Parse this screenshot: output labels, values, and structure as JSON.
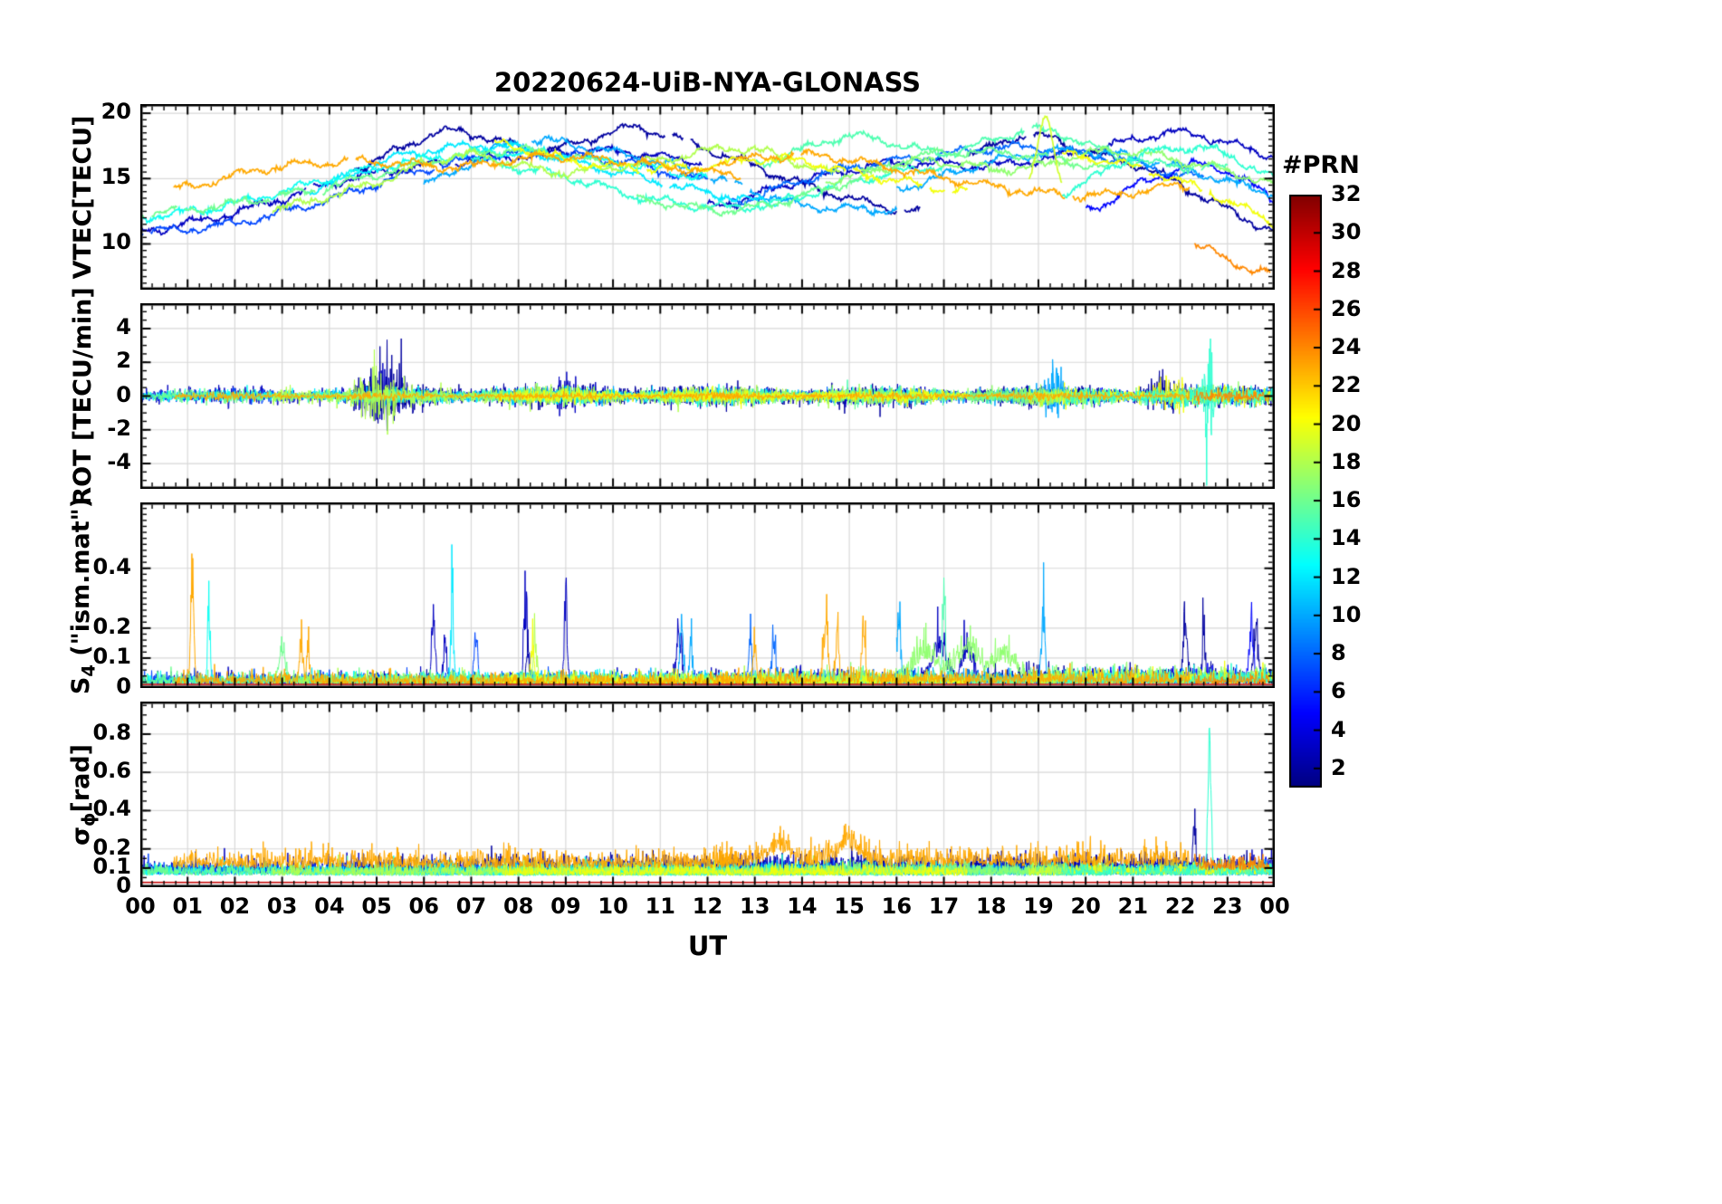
{
  "chart_data": {
    "type": "line",
    "title": "20220624-UiB-NYA-GLONASS",
    "xlabel": "UT",
    "x_range": [
      0,
      24
    ],
    "x_ticks": [
      "00",
      "01",
      "02",
      "03",
      "04",
      "05",
      "06",
      "07",
      "08",
      "09",
      "10",
      "11",
      "12",
      "13",
      "14",
      "15",
      "16",
      "17",
      "18",
      "19",
      "20",
      "21",
      "22",
      "23",
      "00"
    ],
    "grid": true,
    "colorbar": {
      "label": "#PRN",
      "colormap": "jet",
      "range": [
        1,
        32
      ],
      "ticks": [
        2,
        4,
        6,
        8,
        10,
        12,
        14,
        16,
        18,
        20,
        22,
        24,
        26,
        28,
        30,
        32
      ]
    },
    "panels": [
      {
        "id": "vtec",
        "ylabel": [
          {
            "t": "VTEC[TECU]"
          }
        ],
        "ylim": [
          6.5,
          20.7
        ],
        "yticks": [
          10,
          15,
          20
        ],
        "minor": 0.5
      },
      {
        "id": "rot",
        "ylabel": [
          {
            "t": "ROT [TECU/min]"
          }
        ],
        "ylim": [
          -5.5,
          5.5
        ],
        "yticks": [
          -4,
          -2,
          0,
          2,
          4
        ],
        "minor": 0.5
      },
      {
        "id": "s4",
        "ylabel": [
          {
            "t": "S"
          },
          {
            "sub": "4"
          },
          {
            "t": " (\"ism.mat\")"
          }
        ],
        "ylim": [
          0,
          0.62
        ],
        "yticks": [
          0,
          0.1,
          0.2,
          0.4
        ],
        "minor": 0.02
      },
      {
        "id": "sigma_phi",
        "ylabel": [
          {
            "t": "σ"
          },
          {
            "sub": "ϕ"
          },
          {
            "t": "[rad]"
          }
        ],
        "ylim": [
          0,
          0.97
        ],
        "yticks": [
          0,
          0.1,
          0.2,
          0.4,
          0.6,
          0.8
        ],
        "minor": 0.05
      }
    ],
    "seed": 20220624,
    "series": [
      {
        "prn": 3,
        "t0": 0,
        "dt": 2,
        "v": [
          11.0,
          12.4,
          14.6,
          16.0,
          16.7,
          17.1,
          16.2
        ],
        "rot": {
          "amp": 0.45,
          "bursts": [
            [
              5.1,
              0.4,
              1.4
            ],
            [
              9.0,
              0.25,
              0.9
            ]
          ]
        },
        "s4": {
          "base": 0.03,
          "spikes": [
            [
              6.2,
              0.2,
              0.05
            ],
            [
              6.45,
              0.16,
              0.04
            ],
            [
              8.15,
              0.22,
              0.05
            ],
            [
              9.0,
              0.27,
              0.04
            ],
            [
              11.4,
              0.15,
              0.07
            ]
          ]
        },
        "sig": {
          "floor": 0.07,
          "amp": 0.035
        }
      },
      {
        "prn": 2,
        "t0": 4.5,
        "dt": 2,
        "v": [
          15.8,
          18.6,
          17.2,
          18.8,
          16.6,
          14.0,
          12.4
        ],
        "rot": {
          "amp": 0.55,
          "bursts": [
            [
              5.3,
              0.5,
              1.5
            ]
          ]
        },
        "s4": {
          "base": 0.028,
          "spikes": [
            [
              8.2,
              0.1,
              0.05
            ]
          ]
        },
        "sig": {
          "floor": 0.075,
          "amp": 0.04
        }
      },
      {
        "prn": 3,
        "t0": 12,
        "dt": 2,
        "v": [
          12.8,
          14.8,
          16.2,
          16.0,
          17.1,
          18.5,
          16.8
        ],
        "rot": {
          "amp": 0.45
        },
        "s4": {
          "base": 0.035,
          "spikes": [
            [
              16.9,
              0.12,
              0.2
            ],
            [
              17.5,
              0.11,
              0.15
            ]
          ]
        },
        "sig": {
          "floor": 0.08,
          "amp": 0.04
        }
      },
      {
        "prn": 2,
        "t0": 17.5,
        "dt": 1.3,
        "v": [
          16.8,
          18.3,
          17.0,
          15.6,
          13.2,
          11.0,
          10.3
        ],
        "rot": {
          "amp": 0.5,
          "bursts": [
            [
              21.6,
              0.3,
              1.1
            ]
          ]
        },
        "s4": {
          "base": 0.04,
          "spikes": [
            [
              22.1,
              0.2,
              0.05
            ],
            [
              22.5,
              0.15,
              0.04
            ],
            [
              23.6,
              0.16,
              0.06
            ]
          ]
        },
        "sig": {
          "floor": 0.08,
          "amp": 0.04,
          "spikes": [
            [
              22.3,
              0.17,
              0.04
            ]
          ]
        }
      },
      {
        "prn": 7,
        "t0": 0,
        "dt": 2,
        "v": [
          10.9,
          11.6,
          13.4,
          15.7,
          16.9,
          16.4,
          14.9
        ],
        "rot": {
          "amp": 0.3
        },
        "s4": {
          "base": 0.03,
          "spikes": [
            [
              7.1,
              0.14,
              0.05
            ]
          ]
        },
        "sig": {
          "floor": 0.065,
          "amp": 0.03
        }
      },
      {
        "prn": 8,
        "t0": 12.5,
        "dt": 2,
        "v": [
          13.2,
          15.4,
          16.6,
          17.4,
          16.6,
          15.0
        ],
        "rot": {
          "amp": 0.35
        },
        "s4": {
          "base": 0.03,
          "spikes": [
            [
              12.9,
              0.12,
              0.05
            ],
            [
              13.4,
              0.13,
              0.05
            ]
          ]
        },
        "sig": {
          "floor": 0.065,
          "amp": 0.03
        }
      },
      {
        "prn": 5,
        "t0": 20,
        "dt": 1.3,
        "v": [
          12.6,
          14.8,
          16.0,
          13.6,
          10.2,
          8.6,
          9.2
        ],
        "rot": {
          "amp": 0.4
        },
        "s4": {
          "base": 0.04,
          "spikes": [
            [
              23.5,
              0.14,
              0.07
            ]
          ]
        },
        "sig": {
          "floor": 0.07,
          "amp": 0.03
        }
      },
      {
        "prn": 10,
        "t0": 6,
        "dt": 2,
        "v": [
          14.6,
          17.8,
          17.0,
          15.2,
          13.0,
          12.6
        ],
        "rot": {
          "amp": 0.35
        },
        "s4": {
          "base": 0.03,
          "spikes": [
            [
              11.45,
              0.16,
              0.05
            ],
            [
              11.65,
              0.12,
              0.04
            ]
          ]
        },
        "sig": {
          "floor": 0.06,
          "amp": 0.03
        }
      },
      {
        "prn": 10,
        "t0": 16,
        "dt": 2,
        "v": [
          14.2,
          16.3,
          17.1,
          15.8,
          13.9
        ],
        "rot": {
          "amp": 0.4,
          "bursts": [
            [
              19.3,
              0.2,
              1.2
            ]
          ]
        },
        "s4": {
          "base": 0.035,
          "spikes": [
            [
              16.05,
              0.2,
              0.05
            ],
            [
              19.1,
              0.21,
              0.05
            ]
          ]
        },
        "sig": {
          "floor": 0.06,
          "amp": 0.03
        }
      },
      {
        "prn": 12,
        "t0": 3.5,
        "dt": 2,
        "v": [
          14.0,
          16.7,
          17.5,
          16.0,
          14.3,
          13.1
        ],
        "rot": {
          "amp": 0.4
        },
        "s4": {
          "base": 0.03,
          "spikes": [
            [
              6.6,
              0.22,
              0.04
            ]
          ]
        },
        "sig": {
          "floor": 0.06,
          "amp": 0.028
        }
      },
      {
        "prn": 13,
        "t0": 0,
        "dt": 2,
        "v": [
          12.0,
          13.1,
          15.0,
          16.5,
          17.0,
          16.3,
          15.1
        ],
        "rot": {
          "amp": 0.3
        },
        "s4": {
          "base": 0.028,
          "spikes": [
            [
              1.45,
              0.24,
              0.035
            ]
          ]
        },
        "sig": {
          "floor": 0.06,
          "amp": 0.028
        }
      },
      {
        "prn": 14,
        "t0": 7,
        "dt": 2,
        "v": [
          16.4,
          15.1,
          13.3,
          12.9,
          14.7,
          16.0
        ],
        "rot": {
          "amp": 0.35
        },
        "s4": {
          "base": 0.028
        },
        "sig": {
          "floor": 0.06,
          "amp": 0.03
        }
      },
      {
        "prn": 15,
        "t0": 13,
        "dt": 2,
        "v": [
          16.1,
          18.2,
          17.0,
          18.7,
          16.4,
          15.8
        ],
        "rot": {
          "amp": 0.4
        },
        "s4": {
          "base": 0.035,
          "spikes": [
            [
              17.0,
              0.27,
              0.045
            ]
          ]
        },
        "sig": {
          "floor": 0.06,
          "amp": 0.03
        }
      },
      {
        "prn": 16,
        "t0": 0,
        "dt": 2,
        "v": [
          12.3,
          13.1,
          14.4,
          16.2,
          17.2,
          16.1
        ],
        "rot": {
          "amp": 0.35
        },
        "s4": {
          "base": 0.03,
          "spikes": [
            [
              3.0,
              0.09,
              0.1
            ]
          ]
        },
        "sig": {
          "floor": 0.06,
          "amp": 0.03
        }
      },
      {
        "prn": 16,
        "t0": 10.5,
        "dt": 2,
        "v": [
          13.4,
          12.6,
          14.2,
          16.7,
          16.9,
          15.8
        ],
        "rot": {
          "amp": 0.4
        },
        "s4": {
          "base": 0.03
        },
        "sig": {
          "floor": 0.06,
          "amp": 0.03
        }
      },
      {
        "prn": 17,
        "t0": 14.5,
        "dt": 2,
        "v": [
          14.8,
          16.3,
          15.7,
          17.1,
          16.0,
          14.2
        ],
        "rot": {
          "amp": 0.45
        },
        "s4": {
          "base": 0.04,
          "spikes": [
            [
              16.6,
              0.09,
              0.3
            ],
            [
              17.5,
              0.1,
              0.35
            ],
            [
              18.3,
              0.08,
              0.3
            ]
          ]
        },
        "sig": {
          "floor": 0.065,
          "amp": 0.03
        }
      },
      {
        "prn": 18,
        "t0": 2.8,
        "dt": 2,
        "v": [
          12.7,
          14.5,
          16.8,
          15.5,
          16.3,
          17.3,
          15.3
        ],
        "rot": {
          "amp": 0.5,
          "bursts": [
            [
              5.0,
              0.4,
              1.1
            ]
          ]
        },
        "s4": {
          "base": 0.03,
          "spikes": [
            [
              8.35,
              0.12,
              0.05
            ]
          ]
        },
        "sig": {
          "floor": 0.06,
          "amp": 0.03
        }
      },
      {
        "prn": 19,
        "t0": 18.8,
        "dt": 0.35,
        "v": [
          14.8,
          19.9,
          14.6
        ],
        "rot": {
          "amp": 0.5
        },
        "s4": {
          "base": 0.03
        },
        "sig": {
          "floor": 0.06,
          "amp": 0.03
        }
      },
      {
        "prn": 20,
        "t0": 7.5,
        "dt": 2,
        "v": [
          17.7,
          16.1,
          15.8,
          16.5,
          15.2,
          14.0
        ],
        "rot": {
          "amp": 0.35
        },
        "s4": {
          "base": 0.028,
          "spikes": [
            [
              8.3,
              0.11,
              0.05
            ]
          ]
        },
        "sig": {
          "floor": 0.06,
          "amp": 0.028
        }
      },
      {
        "prn": 20,
        "t0": 19.5,
        "dt": 1.5,
        "v": [
          16.8,
          15.9,
          14.1,
          11.6,
          9.6,
          8.3
        ],
        "rot": {
          "amp": 0.45,
          "bursts": [
            [
              21.8,
              0.25,
              0.9
            ]
          ]
        },
        "s4": {
          "base": 0.035
        },
        "sig": {
          "floor": 0.065,
          "amp": 0.03
        }
      },
      {
        "prn": 14,
        "t0": 19.5,
        "dt": 1.5,
        "v": [
          14.0,
          16.6,
          17.3,
          15.0,
          12.2,
          9.8
        ],
        "rot": {
          "amp": 0.5,
          "bursts": [
            [
              22.6,
              0.1,
              4.0
            ]
          ]
        },
        "s4": {
          "base": 0.035
        },
        "sig": {
          "floor": 0.06,
          "amp": 0.03,
          "spikes": [
            [
              22.62,
              0.58,
              0.045
            ]
          ]
        }
      },
      {
        "prn": 23,
        "t0": 0.7,
        "dt": 2,
        "v": [
          14.2,
          15.8,
          16.3,
          15.9,
          16.7,
          16.1,
          15.3
        ],
        "rot": {
          "amp": 0.18
        },
        "s4": {
          "base": 0.03,
          "spikes": [
            [
              1.1,
              0.28,
              0.045
            ],
            [
              3.4,
              0.13,
              0.045
            ],
            [
              3.55,
              0.1,
              0.035
            ]
          ]
        },
        "sig": {
          "floor": 0.1,
          "amp": 0.045
        }
      },
      {
        "prn": 23,
        "t0": 12.2,
        "dt": 2,
        "v": [
          16.3,
          16.8,
          15.6,
          14.3,
          13.7,
          14.5
        ],
        "rot": {
          "amp": 0.2
        },
        "s4": {
          "base": 0.035,
          "spikes": [
            [
              14.5,
              0.2,
              0.06
            ],
            [
              14.75,
              0.15,
              0.045
            ],
            [
              15.3,
              0.17,
              0.05
            ],
            [
              13.0,
              0.1,
              0.05
            ]
          ]
        },
        "sig": {
          "floor": 0.11,
          "amp": 0.05,
          "spikes": [
            [
              13.5,
              0.08,
              0.3
            ],
            [
              15.0,
              0.09,
              0.3
            ]
          ]
        }
      },
      {
        "prn": 24,
        "t0": 22.3,
        "dt": 0.8,
        "v": [
          10.0,
          8.6,
          7.8
        ],
        "rot": {
          "amp": 0.3
        },
        "s4": {
          "base": 0.03
        },
        "sig": {
          "floor": 0.09,
          "amp": 0.04
        }
      },
      {
        "prn": 30,
        "t0": 0,
        "dt": 24,
        "v": null,
        "flat": {
          "s4": 0.012,
          "sig": 0.025
        }
      }
    ]
  }
}
